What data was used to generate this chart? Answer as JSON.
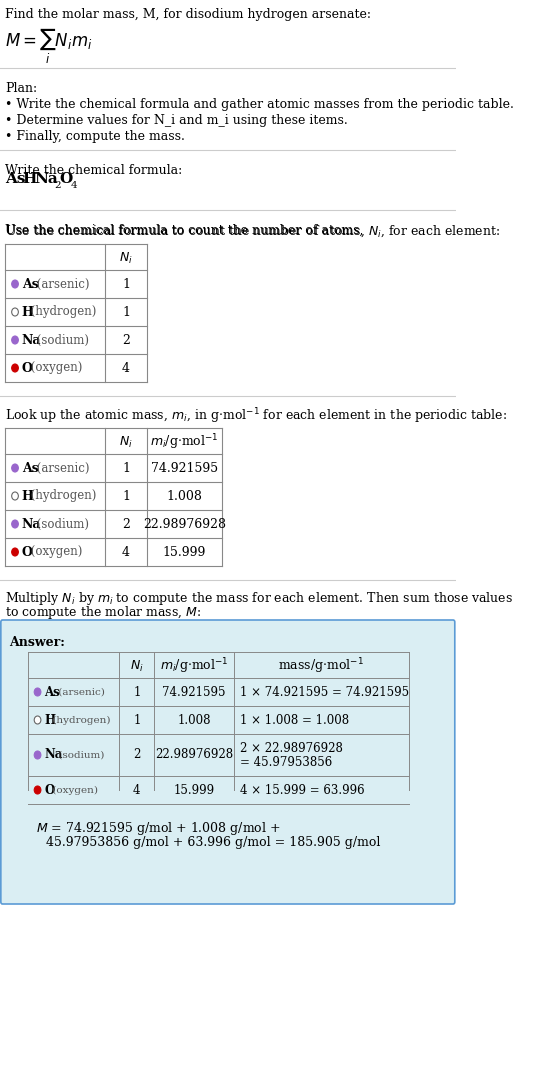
{
  "title_text": "Find the molar mass, M, for disodium hydrogen arsenate:",
  "formula_label": "M = Σ N_i m_i",
  "formula_subscript": "i",
  "section1_title": "Plan:",
  "section1_bullets": [
    "Write the chemical formula and gather atomic masses from the periodic table.",
    "Determine values for N_i and m_i using these items.",
    "Finally, compute the mass."
  ],
  "section2_title": "Write the chemical formula:",
  "chemical_formula": "AsHNa₂O₄",
  "section3_title": "Use the chemical formula to count the number of atoms, N_i, for each element:",
  "elements": [
    "As (arsenic)",
    "H (hydrogen)",
    "Na (sodium)",
    "O (oxygen)"
  ],
  "element_symbols": [
    "As",
    "H",
    "Na",
    "O"
  ],
  "N_i": [
    1,
    1,
    2,
    4
  ],
  "m_i": [
    "74.921595",
    "1.008",
    "22.98976928",
    "15.999"
  ],
  "dot_colors": [
    "#9966cc",
    "#ffffff",
    "#9966cc",
    "#cc0000"
  ],
  "dot_outline": [
    false,
    true,
    false,
    false
  ],
  "section4_title": "Look up the atomic mass, m_i, in g·mol⁻¹ for each element in the periodic table:",
  "section5_title": "Multiply N_i by m_i to compute the mass for each element. Then sum those values\nto compute the molar mass, M:",
  "mass_col": [
    "1 × 74.921595 = 74.921595",
    "1 × 1.008 = 1.008",
    "2 × 22.98976928\n= 45.97953856",
    "4 × 15.999 = 63.996"
  ],
  "final_eq": "M = 74.921595 g/mol + 1.008 g/mol +\n    45.97953856 g/mol + 63.996 g/mol = 185.905 g/mol",
  "answer_bg": "#daeef3",
  "answer_border": "#5b9bd5",
  "bg_color": "#ffffff",
  "text_color": "#000000",
  "table_line_color": "#aaaaaa",
  "font_size": 9,
  "title_font_size": 9
}
